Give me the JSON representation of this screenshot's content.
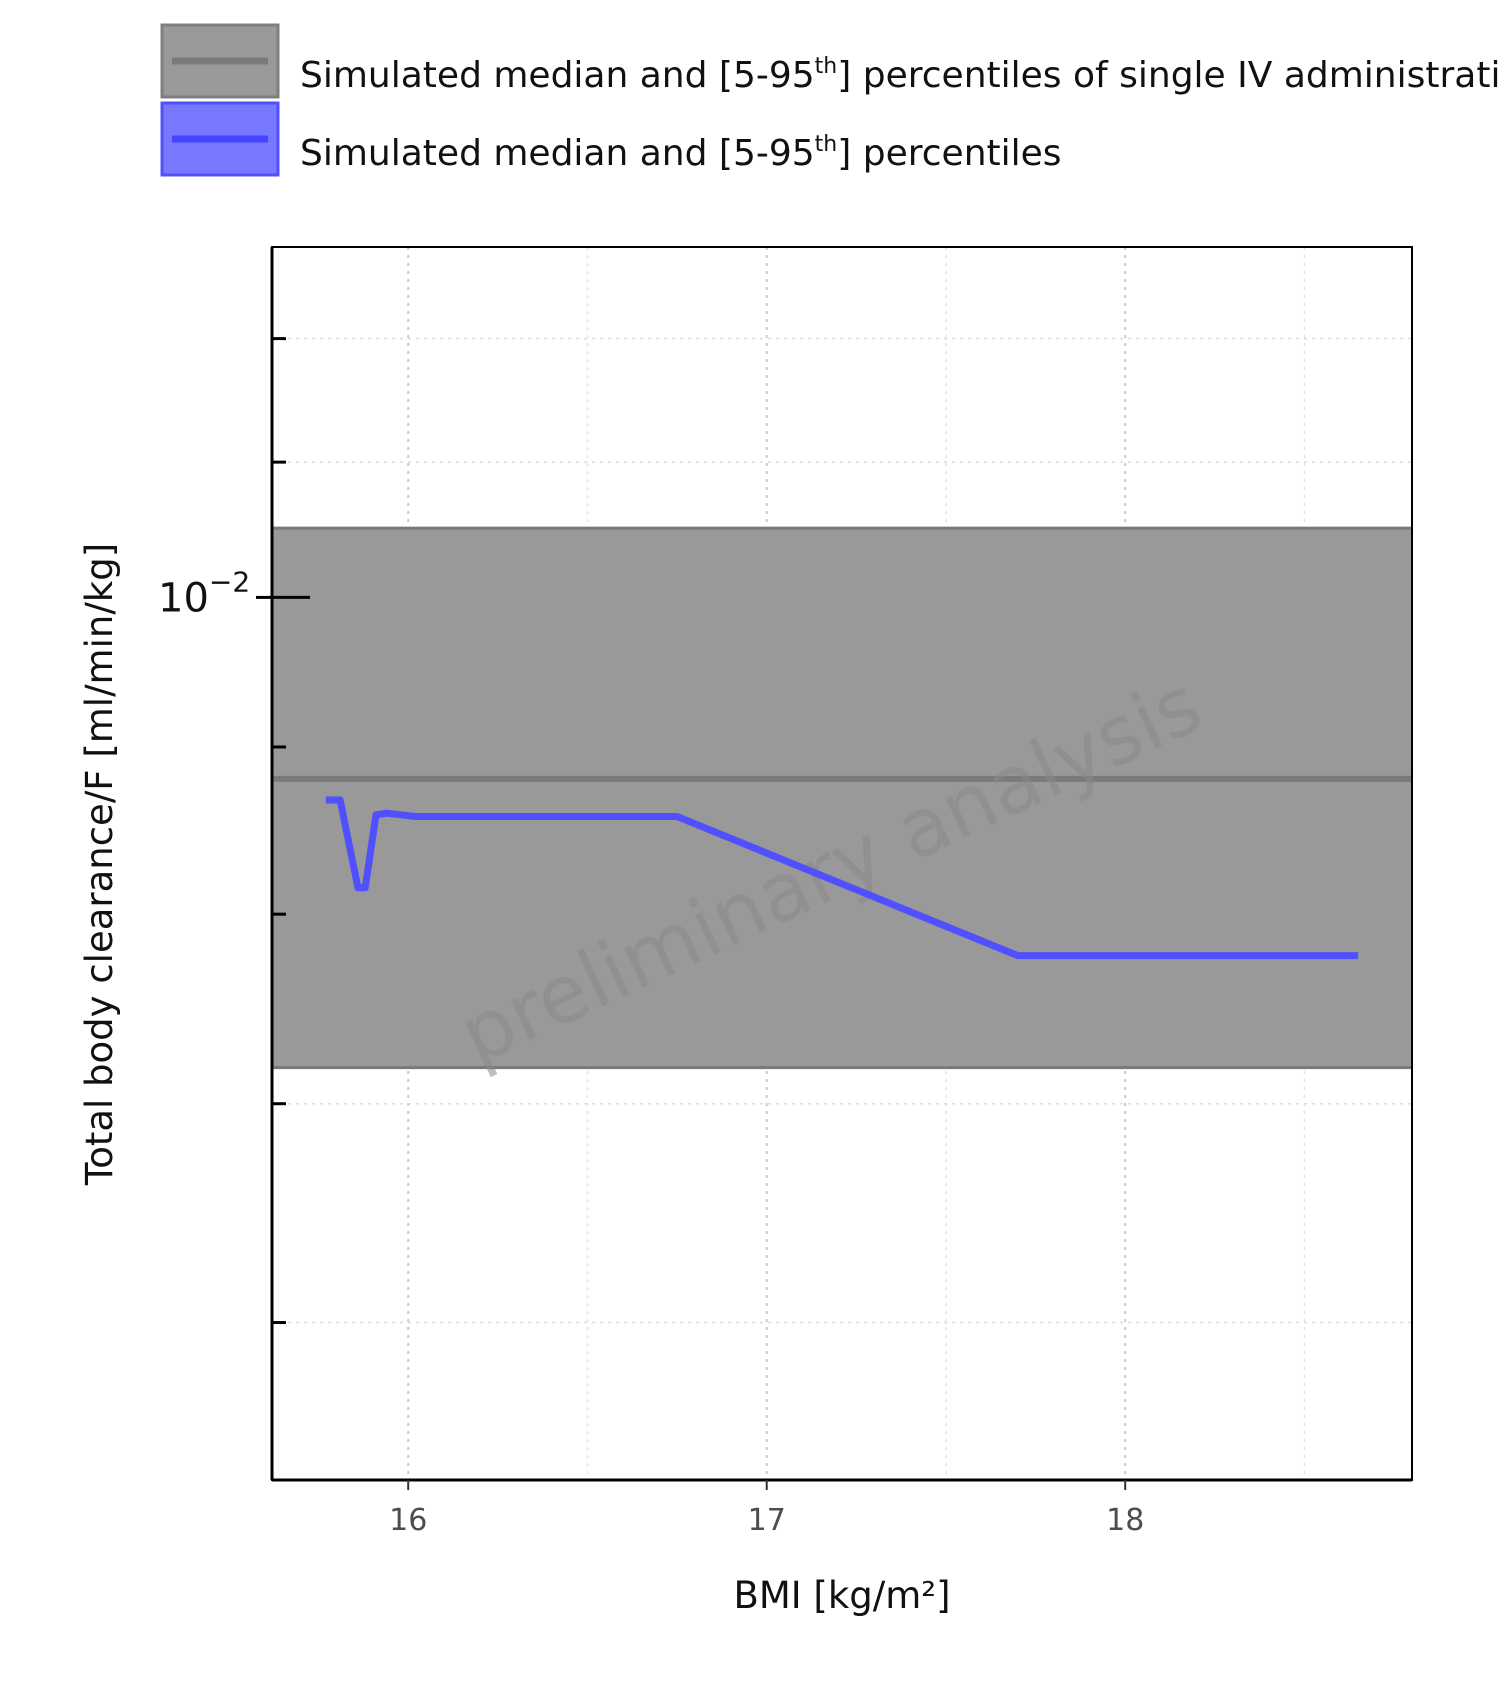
{
  "chart_data": {
    "type": "line",
    "title": "",
    "xlabel": "BMI [kg/m²]",
    "ylabel": "Total body clearance/F [ml/min/kg]",
    "y_scale": "log",
    "xlim": [
      15.62,
      18.8
    ],
    "ylim": [
      0.00537,
      0.0128
    ],
    "x_ticks": [
      16,
      17,
      18
    ],
    "x_tick_labels": [
      "16",
      "17",
      "18"
    ],
    "y_major_tick": {
      "value": 0.01,
      "base": "10",
      "exponent": "−2"
    },
    "y_minor_ticks": [
      0.006,
      0.007,
      0.008,
      0.009,
      0.011,
      0.012
    ],
    "grid": true,
    "legend_position": "top",
    "legend": [
      {
        "text_before": "Simulated median and [5-95",
        "superscript": "th",
        "text_after": "] percentiles of single IV administration",
        "color": "#808080"
      },
      {
        "text_before": "Simulated median and [5-95",
        "superscript": "th",
        "text_after": "] percentiles",
        "color": "#5050ff"
      }
    ],
    "reference_band": {
      "median": 0.0088,
      "p5": 0.00718,
      "p95": 0.0105,
      "x_range": [
        15.62,
        18.8
      ],
      "color": "#808080"
    },
    "series": [
      {
        "color": "#5050ff",
        "x": [
          15.77,
          15.81,
          15.86,
          15.88,
          15.91,
          15.94,
          16.02,
          16.75,
          17.7,
          18.65
        ],
        "y": [
          0.00867,
          0.00867,
          0.00815,
          0.00815,
          0.00858,
          0.00859,
          0.00857,
          0.00857,
          0.00777,
          0.00777
        ]
      }
    ],
    "watermark": "preliminary analysis"
  }
}
